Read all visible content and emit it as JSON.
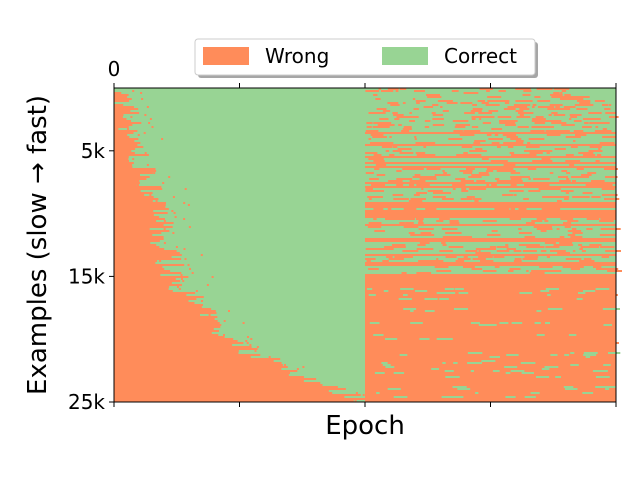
{
  "colors": {
    "wrong": "#ff8c5a",
    "correct": "#98d494"
  },
  "chart_data": {
    "type": "heatmap",
    "title": "",
    "xlabel": "Epoch",
    "ylabel": "Examples (slow → fast)",
    "y_ticks": [
      {
        "value": 0,
        "label": "0"
      },
      {
        "value": 5000,
        "label": "5k"
      },
      {
        "value": 15000,
        "label": "15k"
      },
      {
        "value": 25000,
        "label": "25k"
      }
    ],
    "ylim": [
      0,
      25000
    ],
    "x_tick_count": 5,
    "legend": {
      "placement": "top-center",
      "entries": [
        {
          "name": "Wrong",
          "color": "#ff8c5a"
        },
        {
          "name": "Correct",
          "color": "#98d494"
        }
      ]
    },
    "phase_split_fraction": 0.5,
    "description_values": {
      "examples": 25000,
      "phase1_first_correct_fraction": {
        "0": 0.01,
        "5000": 0.05,
        "15000": 0.12,
        "20000": 0.22,
        "25000": 0.5
      },
      "phase2_wrong_rate": {
        "0": 0.05,
        "5000": 0.12,
        "10000": 0.35,
        "15000": 0.55,
        "20000": 0.75,
        "25000": 0.9
      }
    }
  }
}
